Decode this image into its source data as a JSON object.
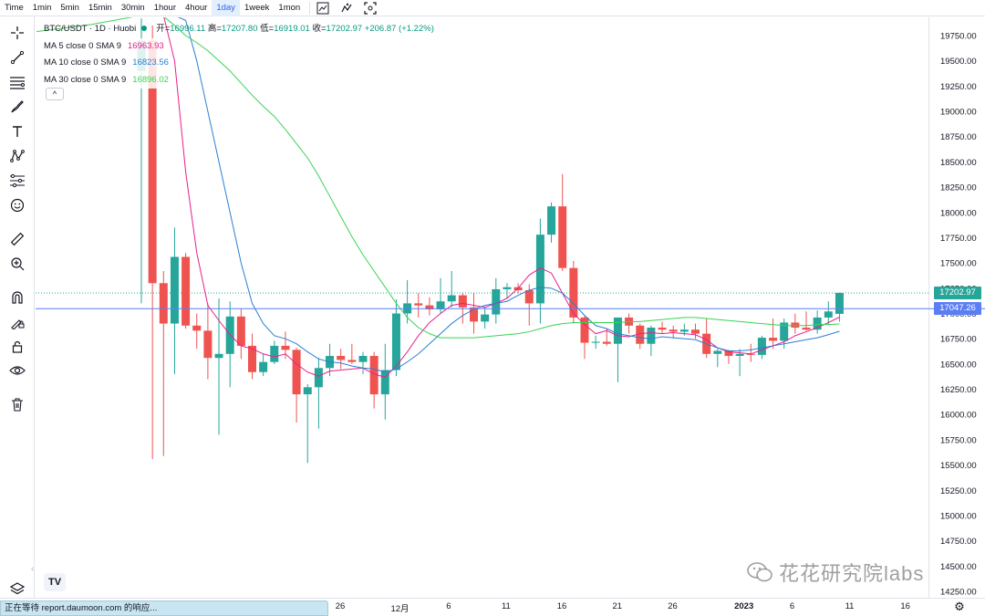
{
  "toolbar": {
    "timeframes": [
      {
        "label": "Time",
        "active": false
      },
      {
        "label": "1min",
        "active": false
      },
      {
        "label": "5min",
        "active": false
      },
      {
        "label": "15min",
        "active": false
      },
      {
        "label": "30min",
        "active": false
      },
      {
        "label": "1hour",
        "active": false
      },
      {
        "label": "4hour",
        "active": false
      },
      {
        "label": "1day",
        "active": true
      },
      {
        "label": "1week",
        "active": false
      },
      {
        "label": "1mon",
        "active": false
      }
    ],
    "icons": [
      "chart-type-icon",
      "indicators-icon",
      "fullscreen-icon"
    ]
  },
  "left_toolbar": {
    "icons": [
      "crosshair-icon",
      "trend-line-icon",
      "horizontal-lines-icon",
      "brush-icon",
      "text-icon",
      "pattern-icon",
      "prediction-icon",
      "emoji-icon",
      "ruler-icon",
      "zoom-in-icon",
      "magnet-icon",
      "draw-lock-icon",
      "lock-icon",
      "eye-icon",
      "trash-icon"
    ],
    "bottom_icon": "layers-icon"
  },
  "legend": {
    "symbol": "BTC/USDT · 1D · Huobi",
    "ohlc": [
      {
        "label": "开=",
        "value": "16996.11"
      },
      {
        "label": "高=",
        "value": "17207.80"
      },
      {
        "label": "低=",
        "value": "16919.01"
      },
      {
        "label": "收=",
        "value": "17202.97"
      }
    ],
    "change": "+206.87 (+1.22%)",
    "ma": [
      {
        "name": "MA 5 close 0 SMA 9",
        "value": "16963.93",
        "color": "#e91e8c"
      },
      {
        "name": "MA 10 close 0 SMA 9",
        "value": "16823.56",
        "color": "#2a7fd4"
      },
      {
        "name": "MA 30 close 0 SMA 9",
        "value": "16896.02",
        "color": "#39d353"
      }
    ],
    "collapse_label": "^"
  },
  "price_axis": {
    "ticks": [
      "19750.00",
      "19500.00",
      "19250.00",
      "19000.00",
      "18750.00",
      "18500.00",
      "18250.00",
      "18000.00",
      "17750.00",
      "17500.00",
      "17250.00",
      "17000.00",
      "16750.00",
      "16500.00",
      "16250.00",
      "16000.00",
      "15750.00",
      "15500.00",
      "15250.00",
      "15000.00",
      "14750.00",
      "14500.00",
      "14250.00"
    ],
    "last_price_tag": "17202.97",
    "line_price_tag": "17047.26"
  },
  "time_axis": {
    "labels": [
      {
        "text": "26",
        "date": "2022-11-26"
      },
      {
        "text": "12月",
        "date": "2022-12-01"
      },
      {
        "text": "6",
        "date": "2022-12-06"
      },
      {
        "text": "11",
        "date": "2022-12-11"
      },
      {
        "text": "16",
        "date": "2022-12-16"
      },
      {
        "text": "21",
        "date": "2022-12-21"
      },
      {
        "text": "26",
        "date": "2022-12-26"
      },
      {
        "text": "2023",
        "date": "2023-01-01"
      },
      {
        "text": "6",
        "date": "2023-01-06"
      },
      {
        "text": "11",
        "date": "2023-01-11"
      },
      {
        "text": "16",
        "date": "2023-01-16"
      }
    ]
  },
  "colors": {
    "up": "#26a69a",
    "down": "#ef5350",
    "horizontal_line": "#5b7ef5",
    "last_price": "#26a69a"
  },
  "chart_data": {
    "type": "candlestick",
    "y_range": [
      14150,
      19950
    ],
    "candles": [
      {
        "date": "2022-11-08",
        "o": 19400,
        "h": 19920,
        "l": 17100,
        "c": 19700
      },
      {
        "date": "2022-11-09",
        "o": 19700,
        "h": 19850,
        "l": 15560,
        "c": 17300
      },
      {
        "date": "2022-11-10",
        "o": 17300,
        "h": 17420,
        "l": 15590,
        "c": 16900
      },
      {
        "date": "2022-11-11",
        "o": 16900,
        "h": 17850,
        "l": 16400,
        "c": 17560
      },
      {
        "date": "2022-11-12",
        "o": 17560,
        "h": 17600,
        "l": 16850,
        "c": 16880
      },
      {
        "date": "2022-11-13",
        "o": 16880,
        "h": 17000,
        "l": 16650,
        "c": 16830
      },
      {
        "date": "2022-11-14",
        "o": 16830,
        "h": 17100,
        "l": 16350,
        "c": 16560
      },
      {
        "date": "2022-11-15",
        "o": 16560,
        "h": 17150,
        "l": 15800,
        "c": 16600
      },
      {
        "date": "2022-11-16",
        "o": 16600,
        "h": 17120,
        "l": 16270,
        "c": 16970
      },
      {
        "date": "2022-11-17",
        "o": 16970,
        "h": 17050,
        "l": 16550,
        "c": 16680
      },
      {
        "date": "2022-11-18",
        "o": 16680,
        "h": 16800,
        "l": 16350,
        "c": 16420
      },
      {
        "date": "2022-11-19",
        "o": 16420,
        "h": 16600,
        "l": 16380,
        "c": 16520
      },
      {
        "date": "2022-11-20",
        "o": 16520,
        "h": 16730,
        "l": 16500,
        "c": 16680
      },
      {
        "date": "2022-11-21",
        "o": 16680,
        "h": 16820,
        "l": 16550,
        "c": 16640
      },
      {
        "date": "2022-11-22",
        "o": 16640,
        "h": 16660,
        "l": 15920,
        "c": 16200
      },
      {
        "date": "2022-11-23",
        "o": 16200,
        "h": 16300,
        "l": 15520,
        "c": 16270
      },
      {
        "date": "2022-11-24",
        "o": 16270,
        "h": 16560,
        "l": 15860,
        "c": 16460
      },
      {
        "date": "2022-11-25",
        "o": 16460,
        "h": 16700,
        "l": 16380,
        "c": 16580
      },
      {
        "date": "2022-11-26",
        "o": 16580,
        "h": 16650,
        "l": 16450,
        "c": 16540
      },
      {
        "date": "2022-11-27",
        "o": 16540,
        "h": 16700,
        "l": 16500,
        "c": 16520
      },
      {
        "date": "2022-11-28",
        "o": 16520,
        "h": 16620,
        "l": 16400,
        "c": 16580
      },
      {
        "date": "2022-11-29",
        "o": 16580,
        "h": 16620,
        "l": 16060,
        "c": 16200
      },
      {
        "date": "2022-11-30",
        "o": 16200,
        "h": 16700,
        "l": 15950,
        "c": 16440
      },
      {
        "date": "2022-12-01",
        "o": 16440,
        "h": 17140,
        "l": 16380,
        "c": 17000
      },
      {
        "date": "2022-12-02",
        "o": 17000,
        "h": 17330,
        "l": 16900,
        "c": 17100
      },
      {
        "date": "2022-12-03",
        "o": 17100,
        "h": 17200,
        "l": 16960,
        "c": 17080
      },
      {
        "date": "2022-12-04",
        "o": 17080,
        "h": 17160,
        "l": 16980,
        "c": 17040
      },
      {
        "date": "2022-12-05",
        "o": 17040,
        "h": 17350,
        "l": 17000,
        "c": 17120
      },
      {
        "date": "2022-12-06",
        "o": 17120,
        "h": 17420,
        "l": 17060,
        "c": 17180
      },
      {
        "date": "2022-12-07",
        "o": 17180,
        "h": 17200,
        "l": 16900,
        "c": 17060
      },
      {
        "date": "2022-12-08",
        "o": 17060,
        "h": 17200,
        "l": 16800,
        "c": 16920
      },
      {
        "date": "2022-12-09",
        "o": 16920,
        "h": 17060,
        "l": 16850,
        "c": 16990
      },
      {
        "date": "2022-12-10",
        "o": 16990,
        "h": 17350,
        "l": 16900,
        "c": 17240
      },
      {
        "date": "2022-12-11",
        "o": 17240,
        "h": 17300,
        "l": 17150,
        "c": 17260
      },
      {
        "date": "2022-12-12",
        "o": 17260,
        "h": 17300,
        "l": 17200,
        "c": 17230
      },
      {
        "date": "2022-12-13",
        "o": 17230,
        "h": 17290,
        "l": 16880,
        "c": 17100
      },
      {
        "date": "2022-12-14",
        "o": 17100,
        "h": 17940,
        "l": 16900,
        "c": 17780
      },
      {
        "date": "2022-12-15",
        "o": 17780,
        "h": 18100,
        "l": 17700,
        "c": 18060
      },
      {
        "date": "2022-12-16",
        "o": 18060,
        "h": 18380,
        "l": 17420,
        "c": 17450
      },
      {
        "date": "2022-12-17",
        "o": 17450,
        "h": 17520,
        "l": 16900,
        "c": 16960
      },
      {
        "date": "2022-12-18",
        "o": 16960,
        "h": 16980,
        "l": 16550,
        "c": 16710
      },
      {
        "date": "2022-12-19",
        "o": 16710,
        "h": 16780,
        "l": 16650,
        "c": 16720
      },
      {
        "date": "2022-12-20",
        "o": 16720,
        "h": 16850,
        "l": 16680,
        "c": 16700
      },
      {
        "date": "2022-12-21",
        "o": 16700,
        "h": 16960,
        "l": 16320,
        "c": 16960
      },
      {
        "date": "2022-12-22",
        "o": 16960,
        "h": 17000,
        "l": 16800,
        "c": 16880
      },
      {
        "date": "2022-12-23",
        "o": 16880,
        "h": 16900,
        "l": 16650,
        "c": 16700
      },
      {
        "date": "2022-12-24",
        "o": 16700,
        "h": 16880,
        "l": 16580,
        "c": 16860
      },
      {
        "date": "2022-12-25",
        "o": 16860,
        "h": 16920,
        "l": 16800,
        "c": 16840
      },
      {
        "date": "2022-12-26",
        "o": 16840,
        "h": 16880,
        "l": 16760,
        "c": 16820
      },
      {
        "date": "2022-12-27",
        "o": 16820,
        "h": 16900,
        "l": 16780,
        "c": 16840
      },
      {
        "date": "2022-12-28",
        "o": 16840,
        "h": 16900,
        "l": 16750,
        "c": 16800
      },
      {
        "date": "2022-12-29",
        "o": 16800,
        "h": 16950,
        "l": 16560,
        "c": 16600
      },
      {
        "date": "2022-12-30",
        "o": 16600,
        "h": 16650,
        "l": 16470,
        "c": 16630
      },
      {
        "date": "2022-12-31",
        "o": 16630,
        "h": 16640,
        "l": 16500,
        "c": 16580
      },
      {
        "date": "2023-01-01",
        "o": 16580,
        "h": 16650,
        "l": 16380,
        "c": 16600
      },
      {
        "date": "2023-01-02",
        "o": 16600,
        "h": 16700,
        "l": 16520,
        "c": 16590
      },
      {
        "date": "2023-01-03",
        "o": 16590,
        "h": 16780,
        "l": 16550,
        "c": 16760
      },
      {
        "date": "2023-01-04",
        "o": 16760,
        "h": 16950,
        "l": 16650,
        "c": 16730
      },
      {
        "date": "2023-01-05",
        "o": 16730,
        "h": 16950,
        "l": 16650,
        "c": 16910
      },
      {
        "date": "2023-01-06",
        "o": 16910,
        "h": 17000,
        "l": 16800,
        "c": 16860
      },
      {
        "date": "2023-01-07",
        "o": 16860,
        "h": 17020,
        "l": 16830,
        "c": 16840
      },
      {
        "date": "2023-01-08",
        "o": 16840,
        "h": 17030,
        "l": 16800,
        "c": 16960
      },
      {
        "date": "2023-01-09",
        "o": 16960,
        "h": 17120,
        "l": 16890,
        "c": 17020
      },
      {
        "date": "2023-01-10",
        "o": 16996.11,
        "h": 17207.8,
        "l": 16919.01,
        "c": 17202.97
      }
    ],
    "moving_averages": [
      {
        "name": "MA 5",
        "values": [
          19950,
          19950,
          19950,
          19500,
          18400,
          17600,
          17080,
          16930,
          16790,
          16680,
          16650,
          16600,
          16570,
          16600,
          16500,
          16420,
          16380,
          16430,
          16440,
          16450,
          16460,
          16400,
          16370,
          16480,
          16620,
          16780,
          16910,
          17000,
          17080,
          17100,
          17080,
          17060,
          17100,
          17150,
          17250,
          17380,
          17450,
          17400,
          17200,
          17000,
          16890,
          16800,
          16830,
          16780,
          16770,
          16800,
          16810,
          16800,
          16810,
          16800,
          16790,
          16740,
          16660,
          16620,
          16610,
          16600,
          16640,
          16680,
          16720,
          16780,
          16820,
          16860,
          16910,
          16963.93
        ]
      },
      {
        "name": "MA 10",
        "values": [
          19950,
          19950,
          19950,
          19950,
          19900,
          19500,
          19000,
          18500,
          18000,
          17500,
          17100,
          16900,
          16780,
          16750,
          16700,
          16620,
          16550,
          16520,
          16510,
          16480,
          16460,
          16450,
          16420,
          16450,
          16520,
          16600,
          16700,
          16800,
          16900,
          16980,
          17040,
          17080,
          17100,
          17120,
          17180,
          17230,
          17260,
          17250,
          17200,
          17100,
          16980,
          16880,
          16850,
          16800,
          16780,
          16760,
          16750,
          16770,
          16760,
          16750,
          16740,
          16700,
          16660,
          16630,
          16630,
          16640,
          16660,
          16680,
          16700,
          16720,
          16740,
          16760,
          16790,
          16823.56
        ]
      },
      {
        "name": "MA 30",
        "values": [
          19950,
          19950,
          19940,
          19850,
          19750,
          19680,
          19600,
          19500,
          19400,
          19280,
          19160,
          19050,
          18950,
          18820,
          18680,
          18540,
          18360,
          18160,
          17960,
          17760,
          17580,
          17420,
          17260,
          17100,
          16960,
          16860,
          16800,
          16760,
          16760,
          16760,
          16760,
          16770,
          16780,
          16790,
          16800,
          16820,
          16850,
          16880,
          16900,
          16910,
          16910,
          16910,
          16910,
          16910,
          16920,
          16920,
          16930,
          16940,
          16950,
          16960,
          16960,
          16950,
          16940,
          16930,
          16920,
          16910,
          16900,
          16890,
          16880,
          16880,
          16880,
          16890,
          16890,
          16896.02
        ]
      }
    ],
    "horizontal_line": 17047.26
  },
  "status": {
    "text": "正在等待 report.daumoon.com 的响应..."
  },
  "watermark": {
    "text": "花花研究院labs"
  },
  "logo_text": "TV"
}
